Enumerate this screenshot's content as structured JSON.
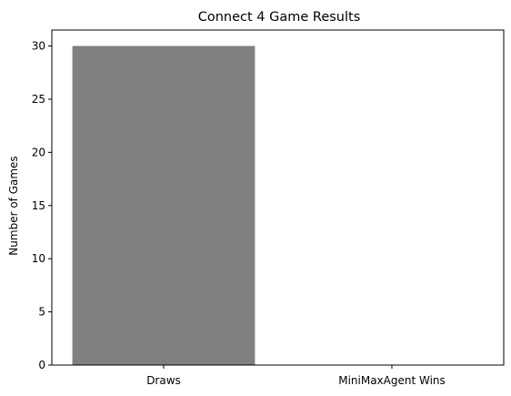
{
  "chart_data": {
    "type": "bar",
    "title": "Connect 4 Game Results",
    "xlabel": "",
    "ylabel": "Number of Games",
    "categories": [
      "Draws",
      "MiniMaxAgent Wins"
    ],
    "values": [
      30,
      0
    ],
    "bar_color": "#808080",
    "ylim": [
      0,
      31.5
    ],
    "yticks": [
      0,
      5,
      10,
      15,
      20,
      25,
      30
    ],
    "grid": false,
    "legend": "none"
  }
}
